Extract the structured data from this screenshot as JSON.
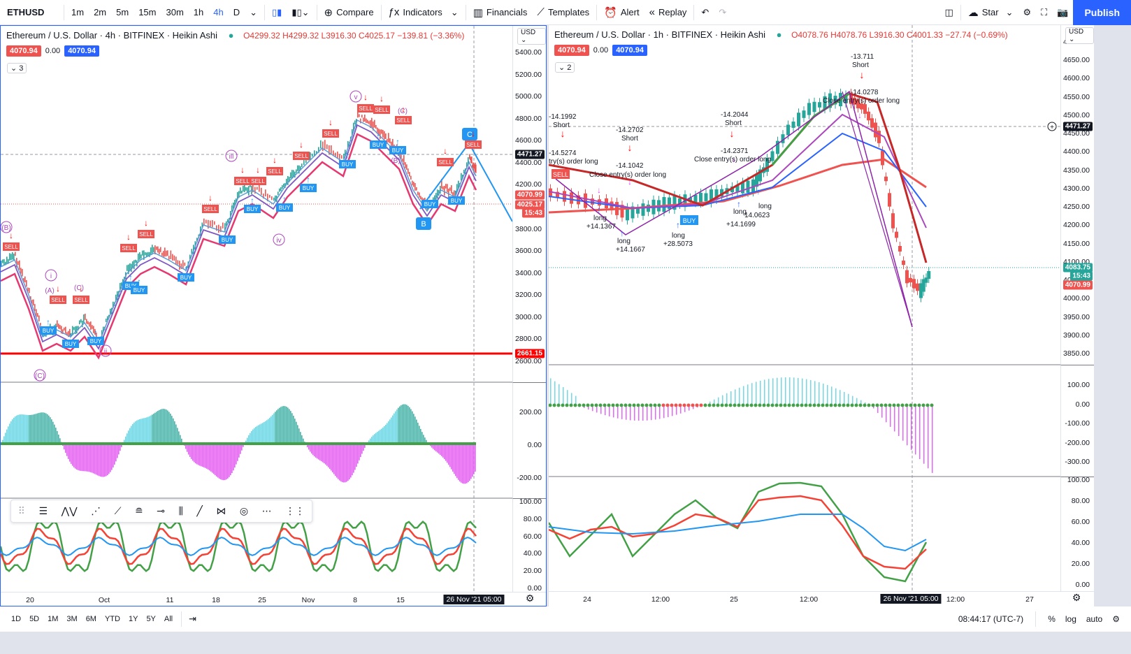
{
  "toolbar": {
    "symbol": "ETHUSD",
    "intervals": [
      "1m",
      "2m",
      "5m",
      "15m",
      "30m",
      "1h",
      "4h",
      "D"
    ],
    "selected_interval": "4h",
    "compare": "Compare",
    "indicators": "Indicators",
    "financials": "Financials",
    "templates": "Templates",
    "alert": "Alert",
    "replay": "Replay",
    "star": "Star",
    "publish": "Publish"
  },
  "left_chart": {
    "title": "Ethereum / U.S. Dollar · 4h · BITFINEX · Heikin Ashi",
    "ohlc": "O4299.32 H4299.32 L3916.30 C4025.17 −139.81 (−3.36%)",
    "sell_price": "4070.94",
    "spread": "0.00",
    "buy_price": "4070.94",
    "study_count": "3",
    "currency": "USD",
    "price_ticks": [
      "5400.00",
      "5200.00",
      "5000.00",
      "4800.00",
      "4600.00",
      "4400.00",
      "4200.00",
      "4000.00",
      "3800.00",
      "3600.00",
      "3400.00",
      "3200.00",
      "3000.00",
      "2800.00",
      "2600.00"
    ],
    "crosshair_label": "4471.27",
    "last_label": "4070.99",
    "close_label": "4025.17",
    "countdown": "15:43",
    "support_label": "2661.15",
    "wave_labels": [
      "(B)",
      "i",
      "(A)",
      "(C)",
      "ii",
      "(C)",
      "iii",
      "iv",
      "v",
      "(C)",
      "(B)",
      "C",
      "B"
    ],
    "signals": [
      "SELL",
      "BUY"
    ],
    "osc_ticks": [
      "200.00",
      "0.00",
      "-200.00"
    ],
    "rsi_ticks": [
      "100.00",
      "80.00",
      "60.00",
      "40.00",
      "20.00",
      "0.00"
    ],
    "time_ticks": [
      "20",
      "Oct",
      "11",
      "18",
      "25",
      "Nov",
      "8",
      "15"
    ],
    "time_cursor": "26 Nov '21",
    "time_cursor2": "05:00"
  },
  "right_chart": {
    "title": "Ethereum / U.S. Dollar · 1h · BITFINEX · Heikin Ashi",
    "ohlc": "O4078.76 H4078.76 L3916.30 C4001.33 −27.74 (−0.69%)",
    "sell_price": "4070.94",
    "spread": "0.00",
    "buy_price": "4070.94",
    "study_count": "2",
    "currency": "USD",
    "price_ticks": [
      "4700.00",
      "4650.00",
      "4600.00",
      "4550.00",
      "4500.00",
      "4450.00",
      "4400.00",
      "4350.00",
      "4300.00",
      "4250.00",
      "4200.00",
      "4150.00",
      "4100.00",
      "4050.00",
      "4000.00",
      "3950.00",
      "3900.00",
      "3850.00"
    ],
    "crosshair_label": "4471.27",
    "last_label": "4083.75",
    "countdown": "15:43",
    "sell_label": "4070.99",
    "strategy_notes": [
      {
        "text": "-14.1992"
      },
      {
        "text": "Short"
      },
      {
        "text": "-14.5274"
      },
      {
        "text": "try(s) order long"
      },
      {
        "text": "-14.2702"
      },
      {
        "text": "Short"
      },
      {
        "text": "-14.1042"
      },
      {
        "text": "Close entry(s) order long"
      },
      {
        "text": "-14.2044"
      },
      {
        "text": "Short"
      },
      {
        "text": "-14.2371"
      },
      {
        "text": "Close entry(s) order long"
      },
      {
        "text": "-13.711"
      },
      {
        "text": "Short"
      },
      {
        "text": "-14.0278"
      },
      {
        "text": "Close entry(s) order long"
      },
      {
        "text": "long"
      },
      {
        "text": "+14.1367"
      },
      {
        "text": "long"
      },
      {
        "text": "+14.1667"
      },
      {
        "text": "long"
      },
      {
        "text": "+28.5073"
      },
      {
        "text": "long"
      },
      {
        "text": "+14.1699"
      },
      {
        "text": "long"
      },
      {
        "text": "14.0623"
      }
    ],
    "osc_ticks": [
      "100.00",
      "0.00",
      "-100.00",
      "-200.00",
      "-300.00"
    ],
    "rsi_ticks": [
      "100.00",
      "80.00",
      "60.00",
      "40.00",
      "20.00",
      "0.00"
    ],
    "time_ticks": [
      "24",
      "12:00",
      "25",
      "12:00",
      "12:00",
      "27"
    ],
    "time_cursor": "26 Nov '21",
    "time_cursor2": "05:00"
  },
  "bottom": {
    "ranges": [
      "1D",
      "5D",
      "1M",
      "3M",
      "6M",
      "YTD",
      "1Y",
      "5Y",
      "All"
    ],
    "clock": "08:44:17 (UTC-7)",
    "percent": "%",
    "log": "log",
    "auto": "auto"
  },
  "colors": {
    "up": "#26a69a",
    "down": "#ef5350",
    "blue": "#2962ff",
    "green": "#43a047",
    "red": "#f44336",
    "magenta": "#e040fb",
    "cyan": "#4dd0e1"
  }
}
